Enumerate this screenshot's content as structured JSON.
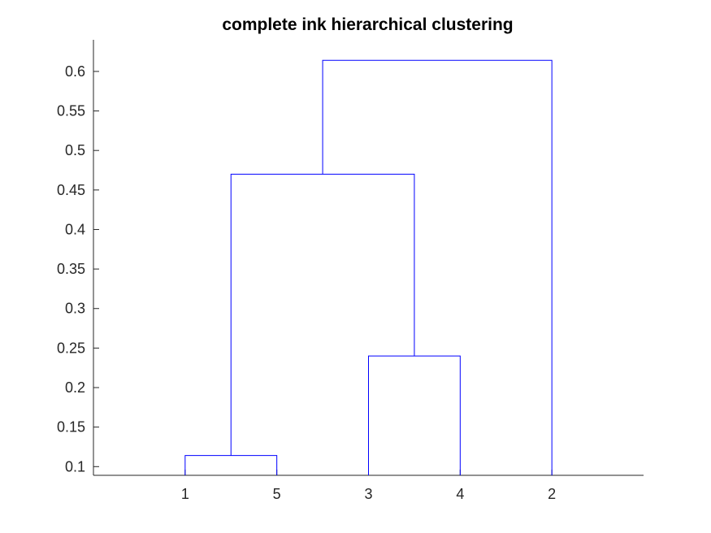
{
  "chart_data": {
    "type": "dendrogram",
    "title": "complete ink hierarchical clustering",
    "xlabel": "",
    "ylabel": "",
    "leaf_order": [
      "1",
      "5",
      "3",
      "4",
      "2"
    ],
    "ylim": [
      0.089,
      0.64
    ],
    "yticks": [
      0.1,
      0.15,
      0.2,
      0.25,
      0.3,
      0.35,
      0.4,
      0.45,
      0.5,
      0.55,
      0.6
    ],
    "ytick_labels": [
      "0.1",
      "0.15",
      "0.2",
      "0.25",
      "0.3",
      "0.35",
      "0.4",
      "0.45",
      "0.5",
      "0.55",
      "0.6"
    ],
    "merges": [
      {
        "left": "1",
        "right": "5",
        "height": 0.114
      },
      {
        "left": "3",
        "right": "4",
        "height": 0.24
      },
      {
        "left": "1+5",
        "right": "3+4",
        "height": 0.47
      },
      {
        "left": "1+5+3+4",
        "right": "2",
        "height": 0.614
      }
    ],
    "line_color": "#0000ff",
    "axis_color": "#262626",
    "grid": false,
    "box": false
  }
}
